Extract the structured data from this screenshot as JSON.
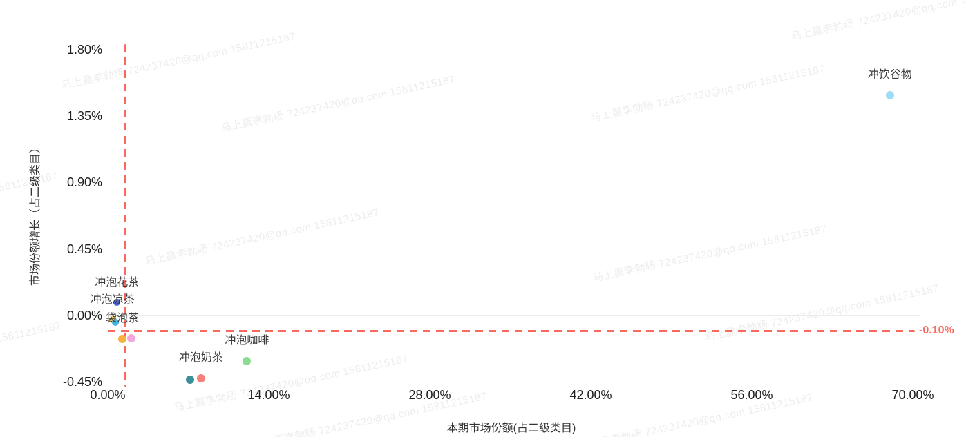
{
  "watermark": {
    "text": "马上赢李勃旸 724237420@qq.com 15811215187",
    "color": "rgba(0,0,0,0.075)",
    "angle_deg": -12,
    "anchors": [
      [
        89,
        113
      ],
      [
        320,
        175
      ],
      [
        855,
        160
      ],
      [
        1145,
        42
      ],
      [
        -255,
        315
      ],
      [
        210,
        368
      ],
      [
        858,
        392
      ],
      [
        1020,
        478
      ],
      [
        -250,
        532
      ],
      [
        252,
        580
      ],
      [
        366,
        634
      ],
      [
        838,
        636
      ]
    ]
  },
  "chart_data": {
    "type": "scatter",
    "title": "",
    "xlabel": "本期市场份额(占二级类目)",
    "ylabel": "市场份额增长（占二级类目）",
    "x_ticks": [
      {
        "value": 0,
        "label": "0.00%"
      },
      {
        "value": 14,
        "label": "14.00%"
      },
      {
        "value": 28,
        "label": "28.00%"
      },
      {
        "value": 42,
        "label": "42.00%"
      },
      {
        "value": 56,
        "label": "56.00%"
      },
      {
        "value": 70,
        "label": "70.00%"
      }
    ],
    "y_ticks": [
      {
        "value": 1.8,
        "label": "1.80%"
      },
      {
        "value": 1.35,
        "label": "1.35%"
      },
      {
        "value": 0.9,
        "label": "0.90%"
      },
      {
        "value": 0.45,
        "label": "0.45%"
      },
      {
        "value": 0.0,
        "label": "0.00%"
      },
      {
        "value": -0.45,
        "label": "-0.45%"
      }
    ],
    "xlim": [
      0,
      70.6
    ],
    "ylim": [
      -0.49,
      1.84
    ],
    "grid": "zero-lines-only",
    "legend": "none",
    "points": [
      {
        "name": "冲饮谷物",
        "x": 68.0,
        "y": 1.49,
        "color": "#9bddf8",
        "r": 6,
        "label": true
      },
      {
        "name": "冲泡花茶",
        "x": 0.8,
        "y": 0.09,
        "color": "#4763df",
        "r": 5,
        "label": true
      },
      {
        "name": "冲泡凉茶",
        "x": 0.4,
        "y": -0.03,
        "color": "#f6c64b",
        "r": 5,
        "label": true
      },
      {
        "name": "",
        "x": 0.68,
        "y": -0.045,
        "color": "#3fb3e4",
        "r": 5,
        "label": false
      },
      {
        "name": "袋泡茶",
        "x": 1.26,
        "y": -0.16,
        "color": "#f8b13e",
        "r": 6,
        "label": true
      },
      {
        "name": "",
        "x": 2.05,
        "y": -0.155,
        "color": "#f4a7db",
        "r": 6,
        "label": false
      },
      {
        "name": "冲泡咖啡",
        "x": 12.1,
        "y": -0.31,
        "color": "#8bdc8f",
        "r": 6,
        "label": true
      },
      {
        "name": "",
        "x": 7.15,
        "y": -0.435,
        "color": "#3d8e96",
        "r": 6,
        "label": false
      },
      {
        "name": "冲泡奶茶",
        "x": 8.1,
        "y": -0.425,
        "color": "#f5807a",
        "r": 6,
        "label": true
      }
    ],
    "ref_lines": {
      "color": "#fa685e",
      "vertical_x": 1.56,
      "horizontal_y": -0.103,
      "horizontal_label": "-0.10%"
    }
  }
}
